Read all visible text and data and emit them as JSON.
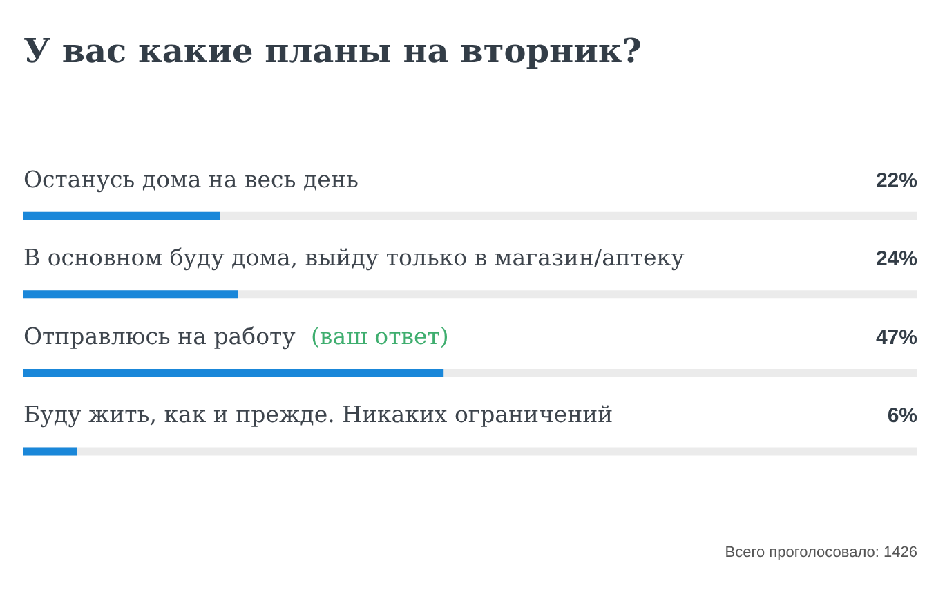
{
  "chart_data": {
    "type": "bar",
    "orientation": "horizontal",
    "title": "У вас какие планы на вторник?",
    "categories": [
      "Останусь дома на весь день",
      "В основном буду дома, выйду только в магазин/аптеку",
      "Отправлюсь на работу",
      "Буду жить, как и прежде. Никаких ограничений"
    ],
    "values": [
      22,
      24,
      47,
      6
    ],
    "value_labels": [
      "22%",
      "24%",
      "47%",
      "6%"
    ],
    "color": "#1a87d9",
    "xlim": [
      0,
      100
    ],
    "tick_labels": "y",
    "annotations": [
      {
        "text": "(ваш ответ)",
        "y": "Отправлюсь на работу"
      },
      "Всего проголосовало: 1426"
    ]
  }
}
